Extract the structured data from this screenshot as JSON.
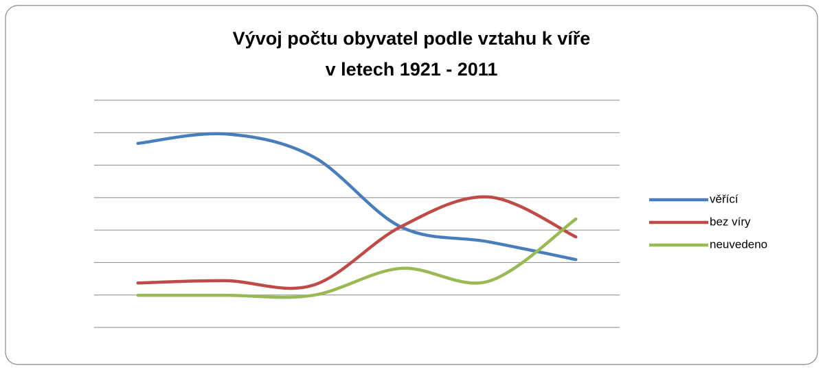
{
  "chart_data": {
    "type": "line",
    "title": [
      "Vývoj počtu obyvatel podle vztahu k víře",
      "v letech 1921 - 2011"
    ],
    "categories": [
      null,
      null,
      null,
      null,
      null,
      null
    ],
    "series": [
      {
        "name": "věřící",
        "color": "#4a7ebb",
        "values": [
          5.67,
          5.96,
          5.26,
          3.1,
          2.64,
          2.09
        ]
      },
      {
        "name": "bez víry",
        "color": "#be4b48",
        "values": [
          1.37,
          1.44,
          1.3,
          3.1,
          4.02,
          2.79
        ]
      },
      {
        "name": "neuvedeno",
        "color": "#98b954",
        "values": [
          0.99,
          0.99,
          0.99,
          1.82,
          1.42,
          3.34
        ]
      }
    ],
    "ylim": [
      0,
      7
    ],
    "yticks": [
      0,
      1,
      2,
      3,
      4,
      5,
      6,
      7
    ],
    "grid": true,
    "smooth": true,
    "legend": "right"
  }
}
